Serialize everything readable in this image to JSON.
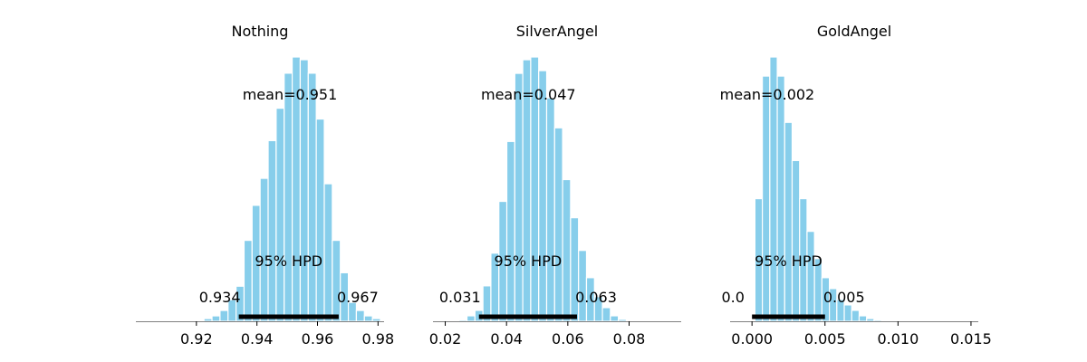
{
  "colors": {
    "bar": "#87ceeb",
    "bar_edge": "#ffffff",
    "hpd_line": "#000000",
    "axis": "#808080"
  },
  "chart_data": [
    {
      "type": "bar",
      "title": "Nothing",
      "mean_label": "mean=0.951",
      "hpd_label": "95% HPD",
      "hpd": [
        0.934,
        0.967
      ],
      "hpd_low_label": "0.934",
      "hpd_high_label": "0.967",
      "xlim": [
        0.9,
        0.982
      ],
      "xticks": [
        0.92,
        0.94,
        0.96,
        0.98
      ],
      "xtick_labels": [
        "0.92",
        "0.94",
        "0.96",
        "0.98"
      ],
      "bin_start": 0.9225,
      "bin_width": 0.00265,
      "values": [
        1,
        2,
        4,
        8,
        13,
        30,
        43,
        53,
        67,
        79,
        92,
        98,
        97,
        92,
        75,
        51,
        30,
        18,
        7,
        4,
        2,
        1
      ]
    },
    {
      "type": "bar",
      "title": "SilverAngel",
      "mean_label": "mean=0.047",
      "hpd_label": "95% HPD",
      "hpd": [
        0.031,
        0.063
      ],
      "hpd_low_label": "0.031",
      "hpd_high_label": "0.063",
      "xlim": [
        0.016,
        0.097
      ],
      "xticks": [
        0.02,
        0.04,
        0.06,
        0.08
      ],
      "xtick_labels": [
        "0.02",
        "0.04",
        "0.06",
        "0.08"
      ],
      "bin_start": 0.0245,
      "bin_width": 0.0026,
      "values": [
        0.5,
        2,
        4,
        13,
        25,
        44,
        66,
        91,
        96,
        97,
        92,
        82,
        71,
        52,
        38,
        26,
        16,
        9,
        5,
        2,
        0.7
      ]
    },
    {
      "type": "bar",
      "title": "GoldAngel",
      "mean_label": "mean=0.002",
      "hpd_label": "95% HPD",
      "hpd": [
        0.0,
        0.005
      ],
      "hpd_low_label": "0.0",
      "hpd_high_label": "0.005",
      "xlim": [
        -0.0015,
        0.0155
      ],
      "xticks": [
        0.0,
        0.005,
        0.01,
        0.015
      ],
      "xtick_labels": [
        "0.000",
        "0.005",
        "0.010",
        "0.015"
      ],
      "bin_start": 0.0002,
      "bin_width": 0.00051,
      "values": [
        45,
        90,
        97,
        90,
        73,
        59,
        45,
        33,
        23,
        16,
        12,
        8,
        6,
        4,
        2,
        1,
        0.5,
        0.2
      ]
    }
  ]
}
